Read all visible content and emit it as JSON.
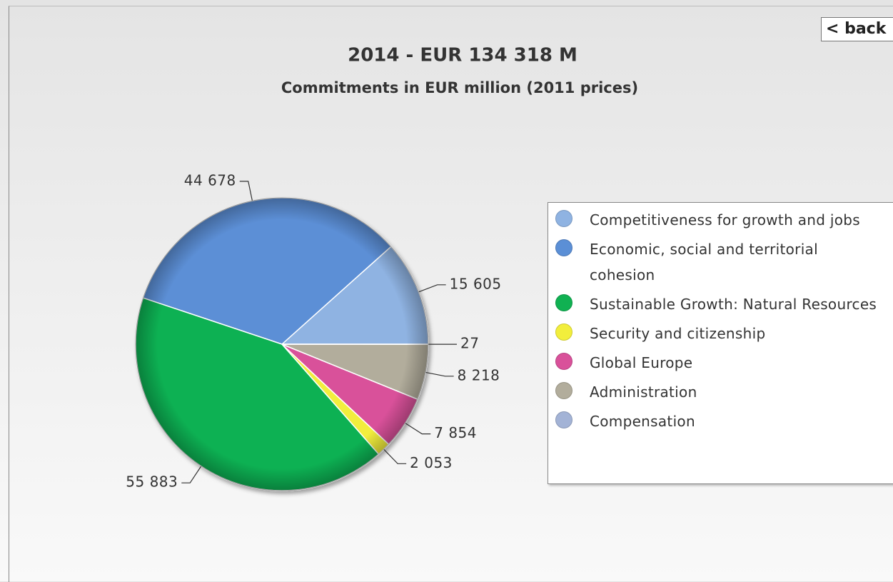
{
  "back_button": "< back",
  "chart_data": {
    "type": "pie",
    "title": "2014  - EUR 134 318 M",
    "subtitle": "Commitments in EUR million  (2011 prices)",
    "categories": [
      "Competitiveness for growth and jobs",
      "Economic, social and territorial cohesion",
      "Sustainable Growth: Natural Resources",
      "Security and citizenship",
      "Global Europe",
      "Administration",
      "Compensation"
    ],
    "values": [
      15605,
      44678,
      55883,
      2053,
      7854,
      8218,
      27
    ],
    "value_labels": [
      "15 605",
      "44 678",
      "55 883",
      "2 053",
      "7 854",
      "8 218",
      "27"
    ],
    "colors": [
      "#8fb3e2",
      "#5b8fd6",
      "#10b152",
      "#f2ee3c",
      "#d9519a",
      "#b2ad9c",
      "#a3b3d6"
    ],
    "legend": "right"
  }
}
